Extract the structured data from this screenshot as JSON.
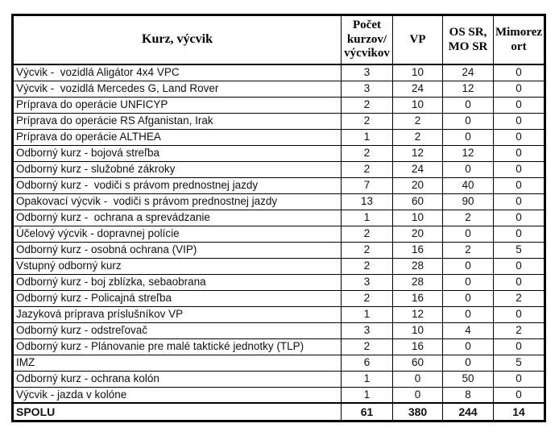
{
  "table": {
    "title": "Kurz, výcvik table",
    "text_color": "#111111",
    "border_color": "#000000",
    "background_color": "#ffffff",
    "columns": [
      {
        "label": "Kurz, výcvik"
      },
      {
        "label": "Počet\nkurzov/\nvýcvikov"
      },
      {
        "label": "VP"
      },
      {
        "label": "OS SR,\nMO SR"
      },
      {
        "label": "Mimorez\nort"
      }
    ],
    "rows": [
      {
        "label": "Výcvik -  vozidlá Aligátor 4x4 VPC",
        "values": [
          3,
          10,
          24,
          0
        ]
      },
      {
        "label": "Výcvik -  vozidlá Mercedes G, Land Rover",
        "values": [
          3,
          24,
          12,
          0
        ]
      },
      {
        "label": "Príprava do operácie UNFICYP",
        "values": [
          2,
          10,
          0,
          0
        ]
      },
      {
        "label": "Príprava do operácie RS Afganistan, Irak",
        "values": [
          2,
          2,
          0,
          0
        ]
      },
      {
        "label": "Príprava do operácie ALTHEA",
        "values": [
          1,
          2,
          0,
          0
        ]
      },
      {
        "label": "Odborný kurz - bojová streľba",
        "values": [
          2,
          12,
          12,
          0
        ]
      },
      {
        "label": "Odborný kurz - služobné zákroky",
        "values": [
          2,
          24,
          0,
          0
        ]
      },
      {
        "label": "Odborný kurz -  vodiči s právom prednostnej jazdy",
        "values": [
          7,
          20,
          40,
          0
        ]
      },
      {
        "label": "Opakovací výcvik -  vodiči s právom prednostnej jazdy",
        "values": [
          13,
          60,
          90,
          0
        ]
      },
      {
        "label": "Odborný kurz -  ochrana a sprevádzanie",
        "values": [
          1,
          10,
          2,
          0
        ]
      },
      {
        "label": "Účelový výcvik - dopravnej polície",
        "values": [
          2,
          20,
          0,
          0
        ]
      },
      {
        "label": "Odborný kurz - osobná ochrana (VIP)",
        "values": [
          2,
          16,
          2,
          5
        ]
      },
      {
        "label": "Vstupný odborný kurz",
        "values": [
          2,
          28,
          0,
          0
        ]
      },
      {
        "label": "Odborný kurz - boj zblízka, sebaobrana",
        "values": [
          3,
          28,
          0,
          0
        ]
      },
      {
        "label": "Odborný kurz - Policajná streľba",
        "values": [
          2,
          16,
          0,
          2
        ]
      },
      {
        "label": "Jazyková príprava príslušníkov VP",
        "values": [
          1,
          12,
          0,
          0
        ]
      },
      {
        "label": "Odborný kurz - odstreľovač",
        "values": [
          3,
          10,
          4,
          2
        ]
      },
      {
        "label": "Odborný kurz - Plánovanie pre malé taktické jednotky (TLP)",
        "values": [
          2,
          16,
          0,
          0
        ]
      },
      {
        "label": "IMZ",
        "values": [
          6,
          60,
          0,
          5
        ]
      },
      {
        "label": "Odborný kurz - ochrana kolón",
        "values": [
          1,
          0,
          50,
          0
        ]
      },
      {
        "label": "Výcvik - jazda v kolóne",
        "values": [
          1,
          0,
          8,
          0
        ]
      }
    ],
    "total": {
      "label": "SPOLU",
      "values": [
        61,
        380,
        244,
        14
      ]
    }
  }
}
